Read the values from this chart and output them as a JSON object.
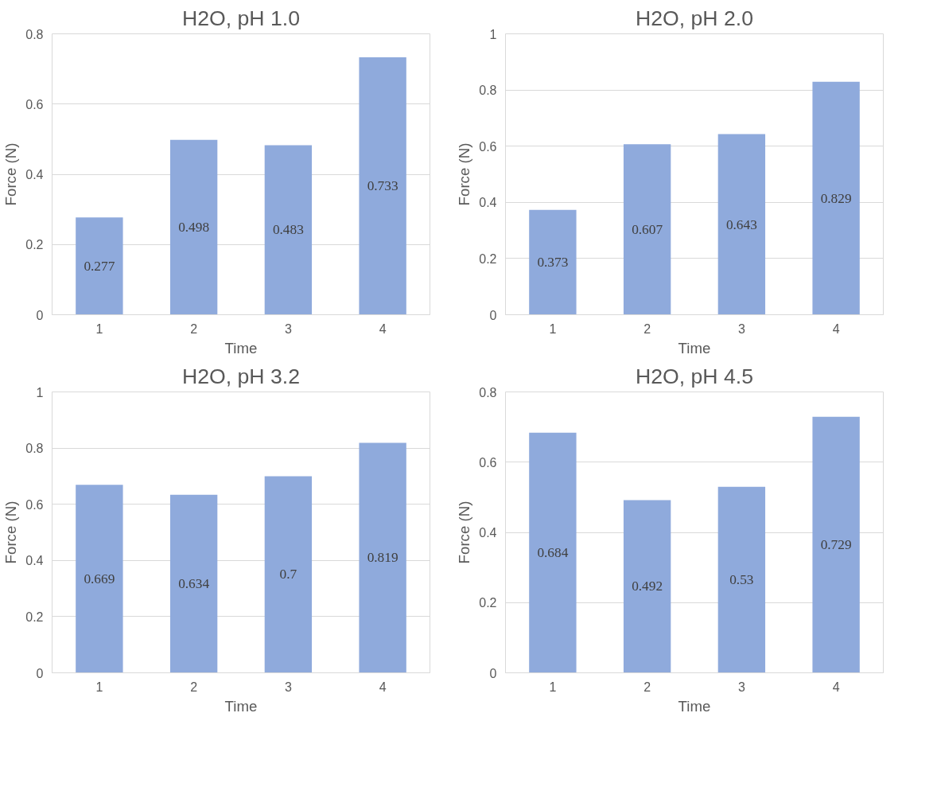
{
  "chart_data": [
    {
      "type": "bar",
      "title": "H2O, pH 1.0",
      "xlabel": "Time",
      "ylabel": "Force (N)",
      "categories": [
        "1",
        "2",
        "3",
        "4"
      ],
      "values": [
        0.277,
        0.498,
        0.483,
        0.733
      ],
      "color": "#8faadc",
      "ylim": [
        0,
        0.8
      ],
      "yticks": [
        0,
        0.2,
        0.4,
        0.6,
        0.8
      ],
      "grid": "y",
      "data_labels": true
    },
    {
      "type": "bar",
      "title": "H2O, pH 2.0",
      "xlabel": "Time",
      "ylabel": "Force (N)",
      "categories": [
        "1",
        "2",
        "3",
        "4"
      ],
      "values": [
        0.373,
        0.607,
        0.643,
        0.829
      ],
      "color": "#8faadc",
      "ylim": [
        0,
        1
      ],
      "yticks": [
        0,
        0.2,
        0.4,
        0.6,
        0.8,
        1
      ],
      "grid": "y",
      "data_labels": true
    },
    {
      "type": "bar",
      "title": "H2O, pH 3.2",
      "xlabel": "Time",
      "ylabel": "Force (N)",
      "categories": [
        "1",
        "2",
        "3",
        "4"
      ],
      "values": [
        0.669,
        0.634,
        0.7,
        0.819
      ],
      "color": "#8faadc",
      "ylim": [
        0,
        1
      ],
      "yticks": [
        0,
        0.2,
        0.4,
        0.6,
        0.8,
        1
      ],
      "grid": "y",
      "data_labels": true
    },
    {
      "type": "bar",
      "title": "H2O, pH 4.5",
      "xlabel": "Time",
      "ylabel": "Force (N)",
      "categories": [
        "1",
        "2",
        "3",
        "4"
      ],
      "values": [
        0.684,
        0.492,
        0.53,
        0.729
      ],
      "color": "#8faadc",
      "ylim": [
        0,
        0.8
      ],
      "yticks": [
        0,
        0.2,
        0.4,
        0.6,
        0.8
      ],
      "grid": "y",
      "data_labels": true
    }
  ]
}
